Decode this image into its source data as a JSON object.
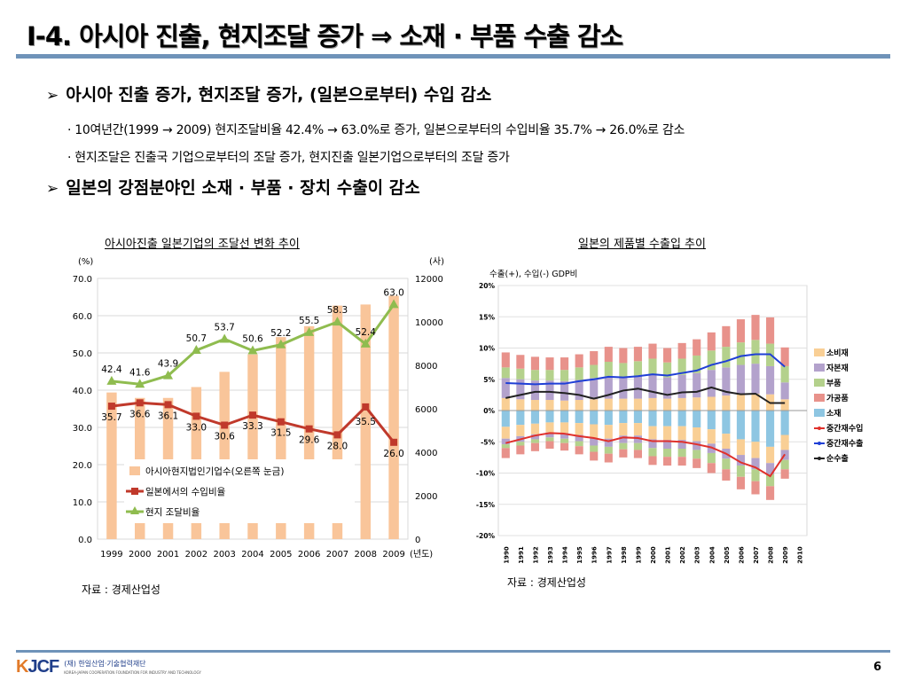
{
  "title": "I-4. 아시아 진출, 현지조달 증가 ⇒ 소재 · 부품 수출 감소",
  "bullets": [
    {
      "marker": "➢",
      "text": "아시아 진출 증가, 현지조달 증가, (일본으로부터) 수입 감소"
    },
    {
      "marker": "➢",
      "text": "일본의 강점분야인 소재 · 부품 · 장치 수출이 감소"
    }
  ],
  "sub_bullets": [
    "· 10여년간(1999 → 2009) 현지조달비율 42.4% → 63.0%로 증가, 일본으로부터의 수입비율 35.7% → 26.0%로 감소",
    "· 현지조달은 진출국 기업으로부터의 조달 증가, 현지진출 일본기업으로부터의 조달 증가"
  ],
  "colors": {
    "rule": "#6f93b9",
    "bar": "#f9c59a",
    "import_line": "#c0392b",
    "local_line": "#8fbc4f"
  },
  "chart_data": [
    {
      "type": "bar",
      "title": "아시아진출 일본기업의 조달선 변화 추이",
      "source": "자료 : 경제산업성",
      "left_unit": "(%)",
      "right_unit": "(사)",
      "x_unit": "(년도)",
      "categories": [
        "1999",
        "2000",
        "2001",
        "2002",
        "2003",
        "2004",
        "2005",
        "2006",
        "2007",
        "2008",
        "2009"
      ],
      "left_ticks": [
        "0.0",
        "10.0",
        "20.0",
        "30.0",
        "40.0",
        "50.0",
        "60.0",
        "70.0"
      ],
      "right_ticks": [
        "0",
        "2000",
        "4000",
        "6000",
        "8000",
        "10000",
        "12000"
      ],
      "ylim_left": [
        0,
        70
      ],
      "ylim_right": [
        0,
        12000
      ],
      "grid": true,
      "legend_position": "bottom-left",
      "series": [
        {
          "name": "아시아현지법인기업수(오른쪽 눈금)",
          "kind": "bar",
          "axis": "right",
          "values": [
            6750,
            6500,
            6500,
            7000,
            7700,
            8500,
            9300,
            9800,
            10750,
            10800,
            11200
          ]
        },
        {
          "name": "일본에서의 수입비율",
          "kind": "line",
          "axis": "left",
          "values": [
            35.7,
            36.6,
            36.1,
            33.0,
            30.6,
            33.3,
            31.5,
            29.6,
            28.0,
            35.5,
            26.0
          ],
          "labels": [
            "35.7",
            "36.6",
            "36.1",
            "33.0",
            "30.6",
            "33.3",
            "31.5",
            "29.6",
            "28.0",
            "35.5",
            "26.0"
          ]
        },
        {
          "name": "현지 조달비율",
          "kind": "line",
          "axis": "left",
          "values": [
            42.4,
            41.6,
            43.9,
            50.7,
            53.7,
            50.6,
            52.2,
            55.5,
            58.3,
            52.4,
            63.0
          ],
          "labels": [
            "42.4",
            "41.6",
            "43.9",
            "50.7",
            "53.7",
            "50.6",
            "52.2",
            "55.5",
            "58.3",
            "52.4",
            "63.0"
          ]
        }
      ]
    },
    {
      "type": "bar",
      "stacked": true,
      "title": "일본의 제품별 수출입 추이",
      "source": "자료 : 경제산업성",
      "note": "수출(+), 수입(-) GDP비",
      "categories": [
        "1990",
        "1991",
        "1992",
        "1993",
        "1994",
        "1995",
        "1996",
        "1997",
        "1998",
        "1999",
        "2000",
        "2001",
        "2002",
        "2003",
        "2004",
        "2005",
        "2006",
        "2007",
        "2008",
        "2009",
        "2010"
      ],
      "y_ticks": [
        "20%",
        "15%",
        "10%",
        "5%",
        "0%",
        "-5%",
        "-10%",
        "-15%",
        "-20%"
      ],
      "ylim": [
        -20,
        20
      ],
      "grid": true,
      "legend_position": "right",
      "series": [
        {
          "name": "소비재",
          "color": "#f9cf95",
          "values": [
            2.0,
            1.8,
            1.7,
            1.7,
            1.6,
            1.7,
            1.8,
            1.9,
            1.9,
            1.9,
            2.0,
            1.9,
            2.0,
            2.1,
            2.2,
            2.4,
            2.6,
            2.7,
            2.6,
            1.8,
            null
          ]
        },
        {
          "name": "자본재",
          "color": "#b3a2cc",
          "values": [
            3.2,
            3.2,
            3.1,
            3.1,
            3.1,
            3.2,
            3.4,
            3.6,
            3.5,
            3.6,
            3.7,
            3.4,
            3.7,
            3.9,
            4.3,
            4.5,
            4.7,
            4.8,
            4.5,
            2.7,
            null
          ]
        },
        {
          "name": "부품",
          "color": "#b4d18c",
          "values": [
            1.7,
            1.7,
            1.7,
            1.7,
            1.8,
            2.0,
            2.1,
            2.3,
            2.2,
            2.4,
            2.6,
            2.4,
            2.6,
            2.8,
            3.1,
            3.3,
            3.6,
            3.8,
            3.6,
            2.6,
            null
          ]
        },
        {
          "name": "가공품",
          "color": "#e8928b",
          "values": [
            2.4,
            2.2,
            2.1,
            2.0,
            2.0,
            2.1,
            2.2,
            2.4,
            2.4,
            2.3,
            2.4,
            2.3,
            2.5,
            2.6,
            2.9,
            3.3,
            3.7,
            4.0,
            4.2,
            3.0,
            null
          ]
        },
        {
          "name": "소재",
          "color": "#8ec6e2",
          "values": [
            -2.6,
            -2.3,
            -2.1,
            -1.9,
            -1.9,
            -2.0,
            -2.2,
            -2.3,
            -2.0,
            -2.0,
            -2.5,
            -2.5,
            -2.5,
            -2.7,
            -3.0,
            -3.7,
            -4.6,
            -5.0,
            -5.8,
            -3.9,
            null
          ]
        },
        {
          "name": "소비재(수입)",
          "color": "#f9cf95",
          "values": [
            -1.9,
            -1.8,
            -1.7,
            -1.6,
            -1.7,
            -1.9,
            -2.2,
            -2.2,
            -2.0,
            -2.0,
            -2.1,
            -2.2,
            -2.2,
            -2.2,
            -2.3,
            -2.4,
            -2.5,
            -2.6,
            -2.6,
            -2.4,
            null
          ]
        },
        {
          "name": "자본재(수입)",
          "color": "#b3a2cc",
          "values": [
            -0.9,
            -0.9,
            -0.8,
            -0.8,
            -0.9,
            -1.0,
            -1.2,
            -1.3,
            -1.2,
            -1.2,
            -1.4,
            -1.4,
            -1.4,
            -1.4,
            -1.5,
            -1.6,
            -1.7,
            -1.8,
            -1.8,
            -1.6,
            null
          ]
        },
        {
          "name": "부품(수입)",
          "color": "#b4d18c",
          "values": [
            -0.6,
            -0.6,
            -0.6,
            -0.6,
            -0.7,
            -0.8,
            -1.0,
            -1.1,
            -1.0,
            -1.1,
            -1.3,
            -1.3,
            -1.3,
            -1.4,
            -1.6,
            -1.7,
            -1.8,
            -1.9,
            -1.9,
            -1.5,
            null
          ]
        },
        {
          "name": "가공품(수입)",
          "color": "#e8928b",
          "values": [
            -1.6,
            -1.4,
            -1.3,
            -1.2,
            -1.2,
            -1.3,
            -1.4,
            -1.4,
            -1.3,
            -1.3,
            -1.4,
            -1.4,
            -1.4,
            -1.5,
            -1.6,
            -1.8,
            -2.0,
            -2.1,
            -2.2,
            -1.5,
            null
          ]
        },
        {
          "name": "중간재수입",
          "color": "#e0302b",
          "kind": "line",
          "values": [
            -5.2,
            -4.6,
            -4.0,
            -3.6,
            -3.7,
            -4.1,
            -4.4,
            -4.9,
            -4.3,
            -4.4,
            -4.9,
            -4.9,
            -5.0,
            -5.4,
            -5.9,
            -6.9,
            -8.3,
            -9.1,
            -10.5,
            -7.0,
            null
          ]
        },
        {
          "name": "중간재수출",
          "color": "#1f3fd6",
          "kind": "line",
          "values": [
            4.4,
            4.3,
            4.2,
            4.3,
            4.3,
            4.7,
            5.0,
            5.4,
            5.3,
            5.5,
            5.8,
            5.6,
            6.0,
            6.4,
            7.3,
            7.9,
            8.7,
            9.0,
            9.0,
            7.0,
            null
          ]
        },
        {
          "name": "순수출",
          "color": "#222222",
          "kind": "line",
          "values": [
            2.0,
            2.5,
            3.0,
            3.0,
            2.8,
            2.5,
            1.9,
            2.5,
            3.2,
            3.5,
            3.0,
            2.5,
            2.9,
            3.0,
            3.7,
            3.0,
            2.6,
            2.7,
            1.2,
            1.2,
            null
          ]
        }
      ],
      "legend_entries": [
        "소비재",
        "자본재",
        "부품",
        "가공품",
        "소재",
        "중간재수입",
        "중간재수출",
        "순수출"
      ]
    }
  ],
  "footer": {
    "org_mark_k": "K",
    "org_mark_rest": "JCF",
    "org_name": "(재) 한일산업·기술협력재단",
    "org_name_en": "KOREA-JAPAN COOPERATION FOUNDATION FOR INDUSTRY AND TECHNOLOGY",
    "page": "6"
  }
}
